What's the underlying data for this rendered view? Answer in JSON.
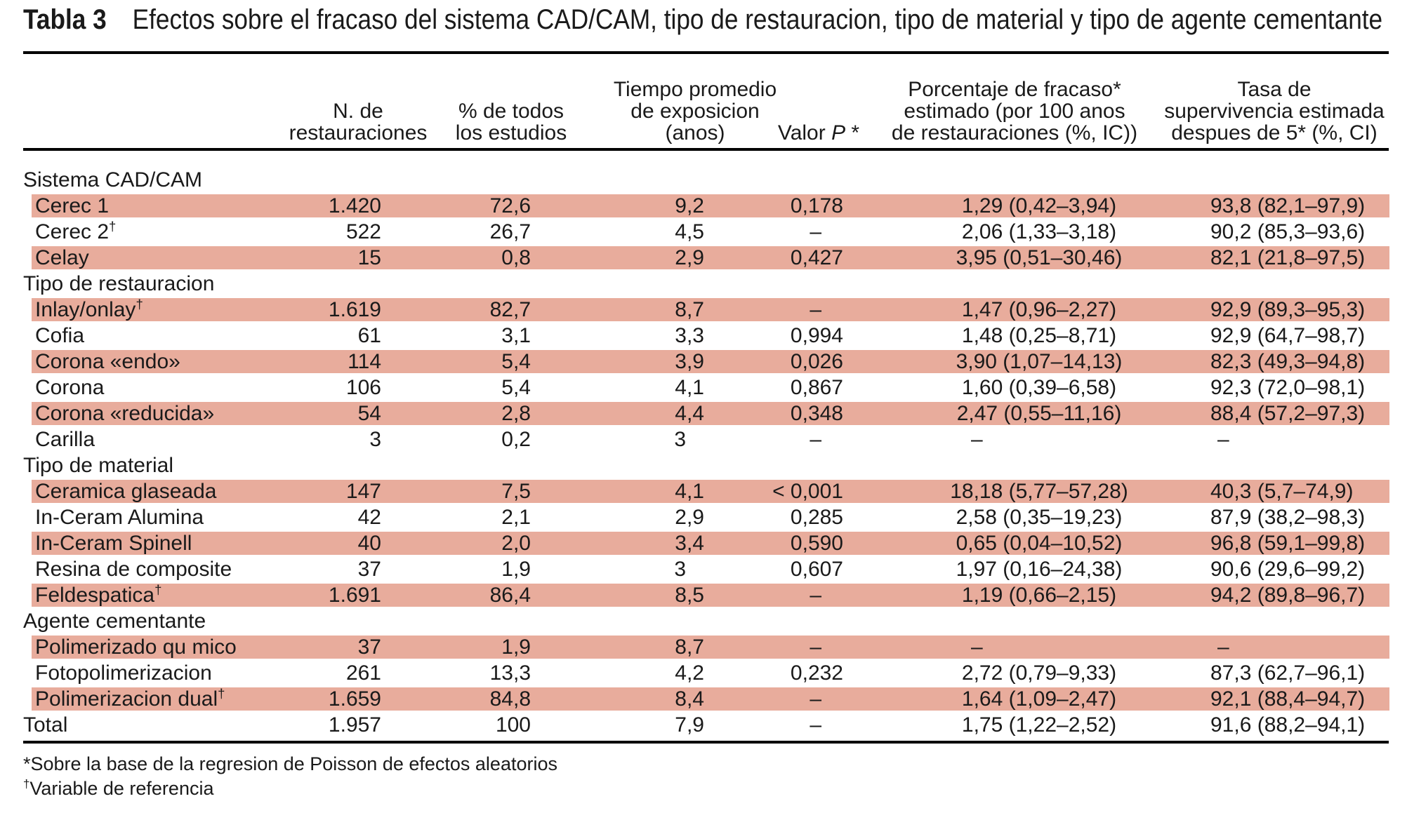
{
  "title": {
    "label": "Tabla 3",
    "text": "Efectos sobre el fracaso del sistema CAD/CAM, tipo de restauracion, tipo de material y tipo de agente cementante"
  },
  "header": {
    "col_n": [
      "N. de",
      "restauraciones"
    ],
    "col_pct": [
      "% de todos",
      "los estudios"
    ],
    "col_tiempo": [
      "Tiempo promedio",
      "de exposicion",
      "(anos)"
    ],
    "col_p": {
      "pre": "Valor ",
      "italic": "P",
      "post": " *"
    },
    "col_fracaso": [
      "Porcentaje de fracaso*",
      "estimado (por 100 anos",
      "de restauraciones (%, IC))"
    ],
    "col_tasa": [
      "Tasa de",
      "supervivencia estimada",
      "despues de 5* (%, CI)"
    ]
  },
  "band_color": "#e8ac9c",
  "rows": [
    {
      "type": "group",
      "label": "Sistema CAD/CAM"
    },
    {
      "type": "data",
      "shaded": true,
      "label": "Cerec 1",
      "n": "1.420",
      "pct": "72,6",
      "tiempo": "9,2",
      "p": "0,178",
      "fracaso": "1,29 (0,42–3,94)",
      "tasa": "93,8 (82,1–97,9)"
    },
    {
      "type": "data",
      "shaded": false,
      "label": "Cerec 2†",
      "n": "522",
      "pct": "26,7",
      "tiempo": "4,5",
      "p": "–",
      "fracaso": "2,06 (1,33–3,18)",
      "tasa": "90,2 (85,3–93,6)"
    },
    {
      "type": "data",
      "shaded": true,
      "label": "Celay",
      "n": "15",
      "pct": "0,8",
      "tiempo": "2,9",
      "p": "0,427",
      "fracaso": "3,95 (0,51–30,46)",
      "tasa": "82,1 (21,8–97,5)"
    },
    {
      "type": "group",
      "label": "Tipo de restauracion"
    },
    {
      "type": "data",
      "shaded": true,
      "label": "Inlay/onlay†",
      "n": "1.619",
      "pct": "82,7",
      "tiempo": "8,7",
      "p": "–",
      "fracaso": "1,47 (0,96–2,27)",
      "tasa": "92,9 (89,3–95,3)"
    },
    {
      "type": "data",
      "shaded": false,
      "label": "Cofia",
      "n": "61",
      "pct": "3,1",
      "tiempo": "3,3",
      "p": "0,994",
      "fracaso": "1,48 (0,25–8,71)",
      "tasa": "92,9 (64,7–98,7)"
    },
    {
      "type": "data",
      "shaded": true,
      "label": "Corona «endo»",
      "n": "114",
      "pct": "5,4",
      "tiempo": "3,9",
      "p": "0,026",
      "fracaso": "3,90 (1,07–14,13)",
      "tasa": "82,3 (49,3–94,8)"
    },
    {
      "type": "data",
      "shaded": false,
      "label": "Corona",
      "n": "106",
      "pct": "5,4",
      "tiempo": "4,1",
      "p": "0,867",
      "fracaso": "1,60 (0,39–6,58)",
      "tasa": "92,3 (72,0–98,1)"
    },
    {
      "type": "data",
      "shaded": true,
      "label": "Corona «reducida»",
      "n": "54",
      "pct": "2,8",
      "tiempo": "4,4",
      "p": "0,348",
      "fracaso": "2,47 (0,55–11,16)",
      "tasa": "88,4 (57,2–97,3)"
    },
    {
      "type": "data",
      "shaded": false,
      "label": "Carilla",
      "n": "3",
      "pct": "0,2",
      "tiempo": "3",
      "p": "–",
      "fracaso": "–",
      "tasa": "–"
    },
    {
      "type": "group",
      "label": "Tipo de material"
    },
    {
      "type": "data",
      "shaded": true,
      "label": "Ceramica glaseada",
      "n": "147",
      "pct": "7,5",
      "tiempo": "4,1",
      "p": "< 0,001",
      "fracaso": "18,18 (5,77–57,28)",
      "tasa": "40,3 (5,7–74,9)"
    },
    {
      "type": "data",
      "shaded": false,
      "label": "In-Ceram Alumina",
      "n": "42",
      "pct": "2,1",
      "tiempo": "2,9",
      "p": "0,285",
      "fracaso": "2,58 (0,35–19,23)",
      "tasa": "87,9 (38,2–98,3)"
    },
    {
      "type": "data",
      "shaded": true,
      "label": "In-Ceram Spinell",
      "n": "40",
      "pct": "2,0",
      "tiempo": "3,4",
      "p": "0,590",
      "fracaso": "0,65 (0,04–10,52)",
      "tasa": "96,8 (59,1–99,8)"
    },
    {
      "type": "data",
      "shaded": false,
      "label": "Resina de composite",
      "n": "37",
      "pct": "1,9",
      "tiempo": "3",
      "p": "0,607",
      "fracaso": "1,97 (0,16–24,38)",
      "tasa": "90,6 (29,6–99,2)"
    },
    {
      "type": "data",
      "shaded": true,
      "label": "Feldespatica†",
      "n": "1.691",
      "pct": "86,4",
      "tiempo": "8,5",
      "p": "–",
      "fracaso": "1,19 (0,66–2,15)",
      "tasa": "94,2 (89,8–96,7)"
    },
    {
      "type": "group",
      "label": "Agente cementante"
    },
    {
      "type": "data",
      "shaded": true,
      "label": "Polimerizado qu mico",
      "n": "37",
      "pct": "1,9",
      "tiempo": "8,7",
      "p": "–",
      "fracaso": "–",
      "tasa": "–"
    },
    {
      "type": "data",
      "shaded": false,
      "label": "Fotopolimerizacion",
      "n": "261",
      "pct": "13,3",
      "tiempo": "4,2",
      "p": "0,232",
      "fracaso": "2,72 (0,79–9,33)",
      "tasa": "87,3 (62,7–96,1)"
    },
    {
      "type": "data",
      "shaded": true,
      "label": "Polimerizacion dual†",
      "n": "1.659",
      "pct": "84,8",
      "tiempo": "8,4",
      "p": "–",
      "fracaso": "1,64 (1,09–2,47)",
      "tasa": "92,1 (88,4–94,7)"
    },
    {
      "type": "total",
      "shaded": false,
      "label": "Total",
      "n": "1.957",
      "pct": "100",
      "tiempo": "7,9",
      "p": "–",
      "fracaso": "1,75 (1,22–2,52)",
      "tasa": "91,6 (88,2–94,1)"
    }
  ],
  "footnotes": [
    "*Sobre la base de la regresion de Poisson de efectos aleatorios",
    "†Variable de referencia"
  ]
}
